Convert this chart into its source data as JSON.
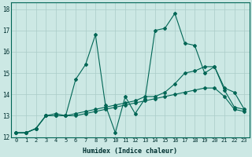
{
  "xlabel": "Humidex (Indice chaleur)",
  "ylabel": "",
  "bg_color": "#cce8e4",
  "grid_color": "#aaccc8",
  "line_color": "#006655",
  "xlim": [
    -0.5,
    23.5
  ],
  "ylim": [
    12,
    18.3
  ],
  "xticks": [
    0,
    1,
    2,
    3,
    4,
    5,
    6,
    7,
    8,
    9,
    10,
    11,
    12,
    13,
    14,
    15,
    16,
    17,
    18,
    19,
    20,
    21,
    22,
    23
  ],
  "yticks": [
    12,
    13,
    14,
    15,
    16,
    17,
    18
  ],
  "line1_x": [
    0,
    1,
    2,
    3,
    4,
    5,
    6,
    7,
    8,
    9,
    10,
    11,
    12,
    13,
    14,
    15,
    16,
    17,
    18,
    19,
    20,
    21,
    22,
    23
  ],
  "line1_y": [
    12.2,
    12.2,
    12.4,
    13.0,
    13.1,
    13.0,
    14.7,
    15.4,
    16.8,
    13.5,
    12.2,
    13.9,
    13.1,
    13.8,
    17.0,
    17.1,
    17.8,
    16.4,
    16.3,
    15.0,
    15.3,
    14.3,
    14.1,
    13.3
  ],
  "line2_x": [
    0,
    1,
    2,
    3,
    4,
    5,
    6,
    7,
    8,
    9,
    10,
    11,
    12,
    13,
    14,
    15,
    16,
    17,
    18,
    19,
    20,
    21,
    22,
    23
  ],
  "line2_y": [
    12.2,
    12.2,
    12.4,
    13.0,
    13.0,
    13.0,
    13.1,
    13.2,
    13.3,
    13.4,
    13.5,
    13.6,
    13.7,
    13.9,
    13.9,
    14.1,
    14.5,
    15.0,
    15.1,
    15.3,
    15.3,
    14.2,
    13.4,
    13.3
  ],
  "line3_x": [
    0,
    1,
    2,
    3,
    4,
    5,
    6,
    7,
    8,
    9,
    10,
    11,
    12,
    13,
    14,
    15,
    16,
    17,
    18,
    19,
    20,
    21,
    22,
    23
  ],
  "line3_y": [
    12.2,
    12.2,
    12.4,
    13.0,
    13.0,
    13.0,
    13.0,
    13.1,
    13.2,
    13.3,
    13.4,
    13.5,
    13.6,
    13.7,
    13.8,
    13.9,
    14.0,
    14.1,
    14.2,
    14.3,
    14.3,
    13.9,
    13.3,
    13.2
  ]
}
